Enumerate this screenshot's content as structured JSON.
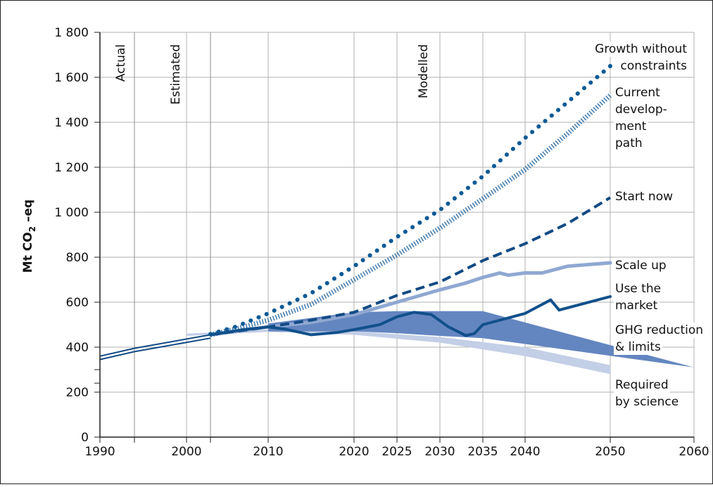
{
  "chart_data": {
    "type": "line",
    "ylabel": {
      "main": "Mt CO",
      "sub": "2",
      "suffix": " –eq"
    },
    "x_ticks": [
      1990,
      2000,
      2010,
      2020,
      2025,
      2030,
      2035,
      2040,
      2050,
      2060
    ],
    "y_ticks": [
      {
        "value": 0,
        "label": "0"
      },
      {
        "value": 200,
        "label": "200"
      },
      {
        "value": 400,
        "label": "400"
      },
      {
        "value": 600,
        "label": "600"
      },
      {
        "value": 800,
        "label": "800"
      },
      {
        "value": 1000,
        "label": "1 000"
      },
      {
        "value": 1200,
        "label": "1 200"
      },
      {
        "value": 1400,
        "label": "1 400"
      },
      {
        "value": 1600,
        "label": "1 600"
      },
      {
        "value": 1800,
        "label": "1 800"
      }
    ],
    "xlim": [
      1990,
      2060
    ],
    "ylim": [
      0,
      1800
    ],
    "grid": true,
    "periods": [
      "Actual",
      "Estimated",
      "Modelled"
    ],
    "series": [
      {
        "name": "Growth without constraints",
        "color": "#0b5a96",
        "style": "dotted",
        "x": [
          2003,
          2006,
          2010,
          2015,
          2020,
          2025,
          2030,
          2035,
          2040,
          2045,
          2050
        ],
        "y": [
          458,
          490,
          550,
          640,
          760,
          890,
          1010,
          1160,
          1330,
          1490,
          1650
        ]
      },
      {
        "name": "Current development path",
        "color": "#3d78ad",
        "style": "hatched",
        "x": [
          2003,
          2006,
          2010,
          2015,
          2020,
          2025,
          2030,
          2035,
          2040,
          2045,
          2050
        ],
        "y": [
          455,
          480,
          520,
          590,
          700,
          810,
          930,
          1060,
          1190,
          1350,
          1520
        ]
      },
      {
        "name": "Start now",
        "color": "#124b85",
        "style": "dashed",
        "x": [
          2003,
          2010,
          2015,
          2020,
          2025,
          2030,
          2035,
          2040,
          2045,
          2050
        ],
        "y": [
          455,
          490,
          520,
          555,
          630,
          690,
          785,
          860,
          950,
          1065
        ]
      },
      {
        "name": "Scale up",
        "color": "#8fa8d2",
        "style": "solid",
        "x": [
          2003,
          2010,
          2015,
          2020,
          2025,
          2030,
          2033,
          2035,
          2037,
          2038,
          2040,
          2042,
          2045,
          2050
        ],
        "y": [
          455,
          490,
          510,
          545,
          600,
          655,
          685,
          710,
          730,
          720,
          730,
          730,
          760,
          775
        ]
      },
      {
        "name": "Use the market",
        "color": "#11508b",
        "style": "solid",
        "x": [
          2003,
          2007,
          2010,
          2012,
          2015,
          2018,
          2020,
          2023,
          2025,
          2027,
          2029,
          2031,
          2033,
          2034,
          2035,
          2040,
          2043,
          2044,
          2046,
          2050
        ],
        "y": [
          455,
          478,
          490,
          480,
          455,
          465,
          478,
          500,
          535,
          555,
          545,
          490,
          452,
          460,
          500,
          550,
          610,
          565,
          585,
          625
        ]
      },
      {
        "name": "GHG reduction & limits",
        "color": "#6486c0",
        "style": "band",
        "x": [
          2010,
          2020,
          2025,
          2030,
          2035,
          2060
        ],
        "y_upper": [
          505,
          555,
          560,
          560,
          560,
          310
        ],
        "y_lower": [
          470,
          470,
          462,
          450,
          440,
          310
        ]
      },
      {
        "name": "Required by science",
        "color": "#c3cfe6",
        "style": "band",
        "x": [
          2000,
          2010,
          2020,
          2030,
          2040,
          2050
        ],
        "y_upper": [
          460,
          478,
          470,
          445,
          400,
          320
        ],
        "y_lower": [
          450,
          468,
          455,
          420,
          360,
          280
        ]
      }
    ],
    "actual_line": {
      "x": [
        1990,
        1994,
        2003
      ],
      "y_upper": [
        360,
        395,
        455
      ],
      "y_lower": [
        345,
        380,
        440
      ]
    },
    "annotations": [
      {
        "text": "Growth without",
        "series": 0
      },
      {
        "text": "constraints",
        "series": 0
      },
      {
        "text": "Current",
        "series": 1
      },
      {
        "text": "develop-",
        "series": 1
      },
      {
        "text": "ment",
        "series": 1
      },
      {
        "text": "path",
        "series": 1
      },
      {
        "text": "Start now",
        "series": 2
      },
      {
        "text": "Scale up",
        "series": 3
      },
      {
        "text": "Use the",
        "series": 4
      },
      {
        "text": "market",
        "series": 4
      },
      {
        "text": "GHG reduction",
        "series": 5
      },
      {
        "text": "& limits",
        "series": 5
      },
      {
        "text": "Required",
        "series": 6
      },
      {
        "text": "by science",
        "series": 6
      }
    ]
  }
}
